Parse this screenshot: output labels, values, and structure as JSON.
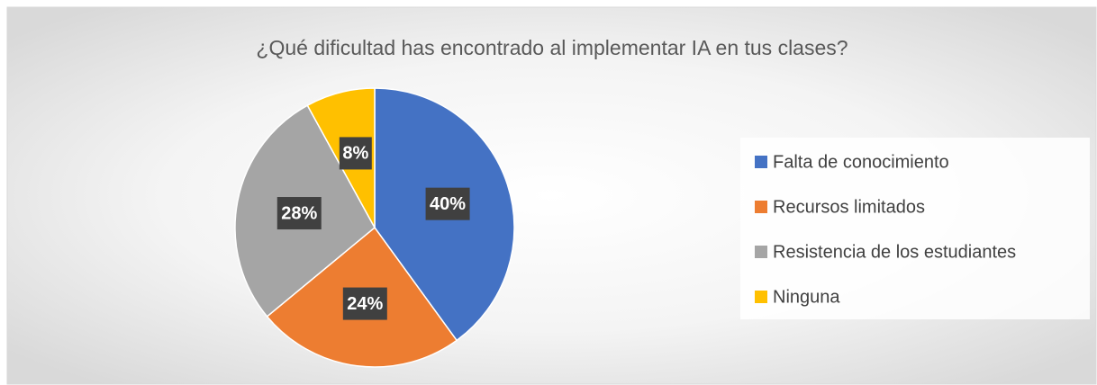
{
  "chart_data": {
    "type": "pie",
    "title": "¿Qué dificultad has encontrado al implementar IA en tus clases?",
    "categories": [
      "Falta de conocimiento",
      "Recursos limitados",
      "Resistencia de los estudiantes",
      "Ninguna"
    ],
    "values": [
      40,
      24,
      28,
      8
    ],
    "value_labels": [
      "40%",
      "24%",
      "28%",
      "8%"
    ],
    "colors": [
      "#4472c4",
      "#ed7d31",
      "#a5a5a5",
      "#ffc000"
    ],
    "legend": "right"
  }
}
